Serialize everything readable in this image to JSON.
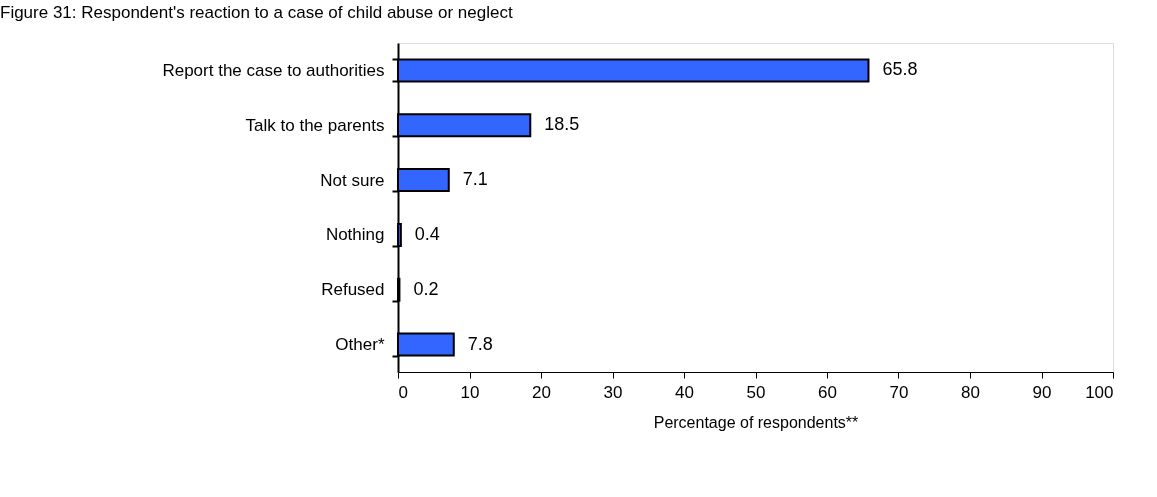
{
  "chart_data": {
    "type": "bar",
    "orientation": "horizontal",
    "title": "Figure 31:  Respondent's reaction to a case of child abuse or neglect",
    "xlabel": "Percentage of respondents**",
    "categories": [
      "Report the case to authorities",
      "Talk to the parents",
      "Not sure",
      "Nothing",
      "Refused",
      "Other*"
    ],
    "values": [
      65.8,
      18.5,
      7.1,
      0.4,
      0.2,
      7.8
    ],
    "color": "#3366ff",
    "data_labels": true,
    "xlim": [
      0,
      100
    ],
    "xticks": [
      0,
      10,
      20,
      30,
      40,
      50,
      60,
      70,
      80,
      90,
      100
    ],
    "grid": false
  }
}
